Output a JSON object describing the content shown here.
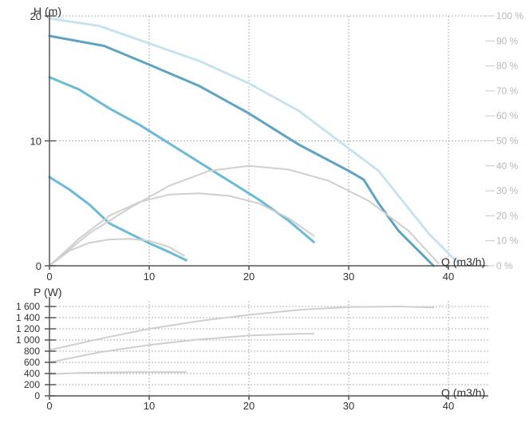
{
  "colors": {
    "head_curve_dark": "#5fa3c2",
    "head_curve": "#6bbad8",
    "efficiency_curve": "#c4e3ee",
    "power_curve": "#cfcfcf",
    "grid": "#b0b0b0",
    "axis": "#555555",
    "right_axis_text": "#b8b8b8"
  },
  "chart_data": [
    {
      "type": "line",
      "xlabel": "Q (m3/h)",
      "ylabel": "H (m)",
      "y2label": "",
      "xlim": [
        0,
        42
      ],
      "ylim": [
        0,
        20
      ],
      "y2lim": [
        0,
        100
      ],
      "x_ticks": [
        "0",
        "10",
        "20",
        "30",
        "40"
      ],
      "y_ticks": [
        "0",
        "10",
        "20"
      ],
      "y2_ticks": [
        "0 %",
        "10 %",
        "20 %",
        "30 %",
        "40 %",
        "50 %",
        "60 %",
        "70 %",
        "80 %",
        "90 %",
        "100 %"
      ],
      "grid": true,
      "series": [
        {
          "role": "head_max",
          "axis": "left",
          "x": [
            0,
            5.5,
            10,
            15,
            20,
            25,
            30,
            31.5,
            33,
            35,
            37,
            38.5
          ],
          "y": [
            18.4,
            17.6,
            16.1,
            14.4,
            12.2,
            9.7,
            7.6,
            6.9,
            5.0,
            2.8,
            1.2,
            0.0
          ]
        },
        {
          "role": "head_mid",
          "axis": "left",
          "x": [
            0,
            3,
            6,
            9,
            12,
            15,
            18,
            21,
            24,
            26.5
          ],
          "y": [
            15.1,
            14.1,
            12.6,
            11.3,
            9.8,
            8.3,
            6.8,
            5.3,
            3.6,
            1.9
          ]
        },
        {
          "role": "head_min",
          "axis": "left",
          "x": [
            0,
            2,
            4,
            6,
            8,
            10,
            12,
            13.7
          ],
          "y": [
            7.1,
            6.1,
            4.9,
            3.4,
            2.6,
            1.8,
            1.1,
            0.45
          ]
        },
        {
          "role": "efficiency",
          "axis": "right",
          "x": [
            0,
            5,
            10,
            15,
            20,
            25,
            30,
            33,
            35,
            38,
            41
          ],
          "y": [
            99,
            96,
            89,
            82,
            73,
            62,
            47,
            38,
            28,
            13,
            1
          ]
        },
        {
          "role": "efficiency_max",
          "axis": "right",
          "x": [
            0,
            4,
            8,
            12,
            16,
            20,
            24,
            28,
            32,
            36,
            39
          ],
          "y": [
            0,
            13,
            23,
            32,
            38,
            40,
            38.5,
            34,
            26,
            14,
            1
          ]
        },
        {
          "role": "efficiency_mid",
          "axis": "right",
          "x": [
            0,
            3,
            6,
            9,
            12,
            15,
            18,
            21,
            24,
            26.5
          ],
          "y": [
            0,
            11,
            20,
            25.5,
            28.5,
            29,
            28,
            25,
            19,
            12
          ]
        },
        {
          "role": "efficiency_min",
          "axis": "right",
          "x": [
            0,
            2,
            4,
            6,
            8,
            10,
            12,
            13.5
          ],
          "y": [
            0,
            6,
            9.2,
            10.5,
            10.8,
            10,
            7.5,
            4
          ]
        }
      ]
    },
    {
      "type": "line",
      "xlabel": "Q (m3/h)",
      "ylabel": "P (W)",
      "xlim": [
        0,
        42
      ],
      "ylim": [
        0,
        1700
      ],
      "x_ticks": [
        "0",
        "10",
        "20",
        "30",
        "40"
      ],
      "y_ticks": [
        "0",
        "200",
        "400",
        "600",
        "800",
        "1 000",
        "1 200",
        "1 400",
        "1 600"
      ],
      "grid": true,
      "series": [
        {
          "role": "power_max",
          "x": [
            0,
            5,
            10,
            15,
            20,
            25,
            30,
            35,
            38.5
          ],
          "y": [
            820,
            1020,
            1200,
            1340,
            1450,
            1540,
            1590,
            1600,
            1580
          ]
        },
        {
          "role": "power_mid",
          "x": [
            0,
            5,
            10,
            15,
            20,
            25,
            26.5
          ],
          "y": [
            600,
            780,
            910,
            1010,
            1080,
            1110,
            1110
          ]
        },
        {
          "role": "power_min",
          "x": [
            0,
            3,
            6,
            9,
            12,
            13.7
          ],
          "y": [
            390,
            410,
            420,
            425,
            425,
            425
          ]
        }
      ]
    }
  ]
}
